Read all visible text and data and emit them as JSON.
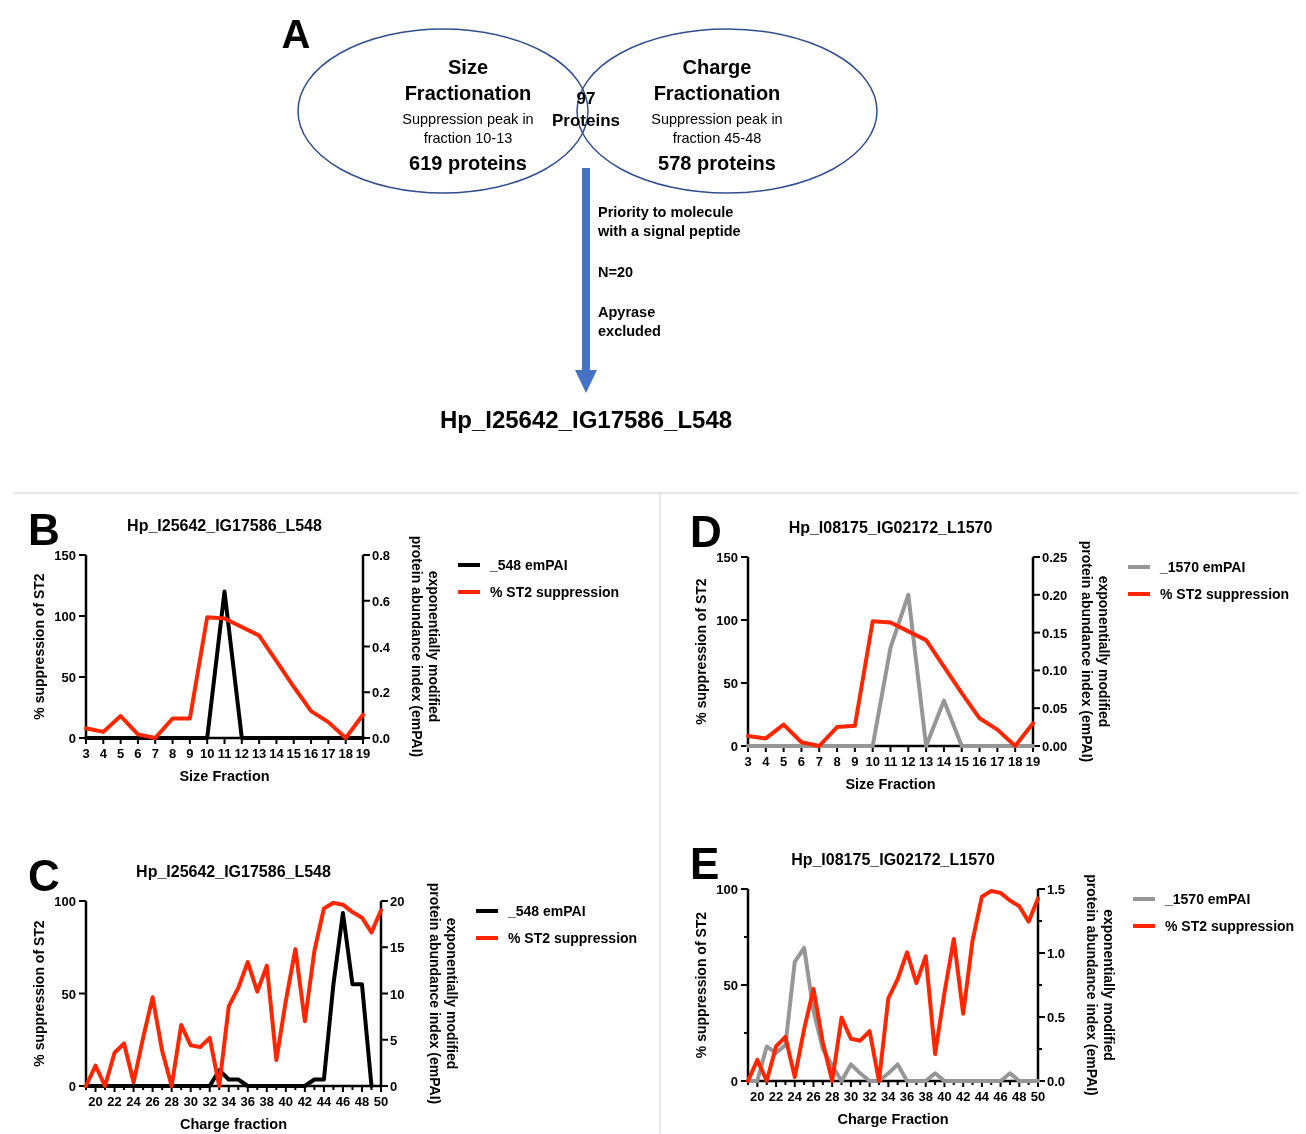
{
  "chart_data": [
    {
      "type": "other",
      "annotations": [
        "A",
        "Size\nFractionation",
        "Suppression peak in\nfraction 10-13",
        "619 proteins",
        "97\nProteins",
        "Charge\nFractionation",
        "Suppression peak in\nfraction 45-48",
        "578 proteins",
        "Priority to molecule\nwith a signal peptide",
        "N=20",
        "Apyrase\nexcluded",
        "Hp_I25642_IG17586_L548"
      ]
    },
    {
      "type": "line",
      "title": "Hp_I25642_IG17586_L548",
      "xlabel": "Size Fraction",
      "ylabel": "% suppression of ST2",
      "y2label": "exponentially modified\nprotein abundance index (emPAI)",
      "annotations": [
        "B"
      ],
      "legend": "right",
      "grid": false,
      "marker": "none",
      "line_style": "solid",
      "x": [
        3,
        4,
        5,
        6,
        7,
        8,
        9,
        10,
        11,
        12,
        13,
        14,
        15,
        16,
        17,
        18,
        19
      ],
      "xlim": [
        3,
        19
      ],
      "xticks": [
        3,
        4,
        5,
        6,
        7,
        8,
        9,
        10,
        11,
        12,
        13,
        14,
        15,
        16,
        17,
        18,
        19
      ],
      "ylim": [
        0,
        150
      ],
      "yticks": [
        0,
        50,
        100,
        150
      ],
      "y2lim": [
        0,
        0.8
      ],
      "y2ticks": [
        {
          "value": 0,
          "label": "0.0"
        },
        {
          "value": 0.2,
          "label": "0.2"
        },
        {
          "value": 0.4,
          "label": "0.4"
        },
        {
          "value": 0.6,
          "label": "0.6"
        },
        {
          "value": 0.8,
          "label": "0.8"
        }
      ],
      "series": [
        {
          "name": "_548 emPAI",
          "color": "#000000",
          "axis": "y2",
          "values": [
            0,
            0,
            0,
            0,
            0,
            0,
            0,
            0,
            0.64,
            0,
            0,
            0,
            0,
            0,
            0,
            0,
            0
          ]
        },
        {
          "name": "% ST2 suppression",
          "color": "#ff2600",
          "values": [
            8,
            5,
            18,
            3,
            0,
            16,
            16,
            99,
            98,
            91,
            84,
            63,
            42,
            22,
            13,
            0,
            19
          ]
        }
      ]
    },
    {
      "type": "line",
      "title": "Hp_I25642_IG17586_L548",
      "xlabel": "Charge fraction",
      "ylabel": "% suppression of ST2",
      "y2label": "exponentially modified\nprotein abundance index (emPAI)",
      "annotations": [
        "C"
      ],
      "legend": "right",
      "grid": false,
      "marker": "none",
      "line_style": "solid",
      "x": [
        19,
        20,
        21,
        22,
        23,
        24,
        25,
        26,
        27,
        28,
        29,
        30,
        31,
        32,
        33,
        34,
        35,
        36,
        37,
        38,
        39,
        40,
        41,
        42,
        43,
        44,
        45,
        46,
        47,
        48,
        49,
        50
      ],
      "xlim": [
        19,
        50
      ],
      "xticks": [
        {
          "value": 19,
          "label": null
        },
        20,
        {
          "value": 21,
          "label": null
        },
        22,
        {
          "value": 23,
          "label": null
        },
        24,
        {
          "value": 25,
          "label": null
        },
        26,
        {
          "value": 27,
          "label": null
        },
        28,
        {
          "value": 29,
          "label": null
        },
        30,
        {
          "value": 31,
          "label": null
        },
        32,
        {
          "value": 33,
          "label": null
        },
        34,
        {
          "value": 35,
          "label": null
        },
        36,
        {
          "value": 37,
          "label": null
        },
        38,
        {
          "value": 39,
          "label": null
        },
        40,
        {
          "value": 41,
          "label": null
        },
        42,
        {
          "value": 43,
          "label": null
        },
        44,
        {
          "value": 45,
          "label": null
        },
        46,
        {
          "value": 47,
          "label": null
        },
        48,
        {
          "value": 49,
          "label": null
        },
        50
      ],
      "ylim": [
        0,
        100
      ],
      "yticks": [
        0,
        50,
        100
      ],
      "y2lim": [
        0,
        20
      ],
      "y2ticks": [
        0,
        5,
        10,
        15,
        20
      ],
      "series": [
        {
          "name": "_548 emPAI",
          "color": "#000000",
          "axis": "y2",
          "values": [
            0,
            0,
            0,
            0,
            0,
            0,
            0,
            0,
            0,
            0,
            0,
            0,
            0,
            0,
            1.7,
            0.7,
            0.7,
            0,
            0,
            0,
            0,
            0,
            0,
            0,
            0.7,
            0.7,
            11,
            18.7,
            11,
            11,
            0,
            null
          ]
        },
        {
          "name": "% ST2 suppression",
          "color": "#ff2600",
          "values": [
            0,
            11,
            0,
            18,
            23,
            2,
            26,
            48,
            19,
            0,
            33,
            22,
            21,
            26,
            0,
            43,
            53,
            67,
            51,
            65,
            14,
            46,
            74,
            35,
            73,
            96,
            99,
            98,
            94,
            91,
            83,
            95
          ]
        }
      ]
    },
    {
      "type": "line",
      "title": "Hp_I08175_IG02172_L1570",
      "xlabel": "Size Fraction",
      "ylabel": "% suppression of ST2",
      "y2label": "exponentially modified\nprotein abundance index (emPAI)",
      "annotations": [
        "D"
      ],
      "legend": "right",
      "grid": false,
      "marker": "none",
      "line_style": "solid",
      "x": [
        3,
        4,
        5,
        6,
        7,
        8,
        9,
        10,
        11,
        12,
        13,
        14,
        15,
        16,
        17,
        18,
        19
      ],
      "xlim": [
        3,
        19
      ],
      "xticks": [
        3,
        4,
        5,
        6,
        7,
        8,
        9,
        10,
        11,
        12,
        13,
        14,
        15,
        16,
        17,
        18,
        19
      ],
      "ylim": [
        0,
        150
      ],
      "yticks": [
        0,
        50,
        100,
        150
      ],
      "y2lim": [
        0,
        0.25
      ],
      "y2ticks": [
        {
          "value": 0,
          "label": "0.00"
        },
        {
          "value": 0.05,
          "label": "0.05"
        },
        {
          "value": 0.1,
          "label": "0.10"
        },
        {
          "value": 0.15,
          "label": "0.15"
        },
        {
          "value": 0.2,
          "label": "0.20"
        },
        {
          "value": 0.25,
          "label": "0.25"
        }
      ],
      "series": [
        {
          "name": "_1570 emPAI",
          "color": "#969696",
          "axis": "y2",
          "values": [
            0,
            0,
            0,
            0,
            0,
            0,
            0,
            0,
            0.13,
            0.2,
            0,
            0.06,
            0,
            0,
            0,
            0,
            0
          ]
        },
        {
          "name": "% ST2 suppression",
          "color": "#ff2600",
          "values": [
            8,
            6,
            17,
            3,
            0,
            15,
            16,
            99,
            98,
            91,
            84,
            63,
            42,
            22,
            13,
            0,
            18
          ]
        }
      ]
    },
    {
      "type": "line",
      "title": "Hp_I08175_IG02172_L1570",
      "xlabel": "Charge Fraction",
      "ylabel": "% suppression of ST2",
      "y2label": "exponentially modified\nprotein abundance index (emPAI)",
      "annotations": [
        "E"
      ],
      "legend": "right",
      "grid": false,
      "marker": "none",
      "line_style": "solid",
      "x": [
        19,
        20,
        21,
        22,
        23,
        24,
        25,
        26,
        27,
        28,
        29,
        30,
        31,
        32,
        33,
        34,
        35,
        36,
        37,
        38,
        39,
        40,
        41,
        42,
        43,
        44,
        45,
        46,
        47,
        48,
        49,
        50
      ],
      "xlim": [
        19,
        50
      ],
      "xticks": [
        {
          "value": 19,
          "label": null
        },
        20,
        {
          "value": 21,
          "label": null
        },
        22,
        {
          "value": 23,
          "label": null
        },
        24,
        {
          "value": 25,
          "label": null
        },
        26,
        {
          "value": 27,
          "label": null
        },
        28,
        {
          "value": 29,
          "label": null
        },
        30,
        {
          "value": 31,
          "label": null
        },
        32,
        {
          "value": 33,
          "label": null
        },
        34,
        {
          "value": 35,
          "label": null
        },
        36,
        {
          "value": 37,
          "label": null
        },
        38,
        {
          "value": 39,
          "label": null
        },
        40,
        {
          "value": 41,
          "label": null
        },
        42,
        {
          "value": 43,
          "label": null
        },
        44,
        {
          "value": 45,
          "label": null
        },
        46,
        {
          "value": 47,
          "label": null
        },
        48,
        {
          "value": 49,
          "label": null
        },
        50
      ],
      "ylim": [
        0,
        100
      ],
      "yticks": [
        0,
        {
          "value": 25,
          "label": null
        },
        50,
        {
          "value": 75,
          "label": null
        },
        100
      ],
      "y2lim": [
        0,
        1.5
      ],
      "y2ticks": [
        {
          "value": 0,
          "label": "0.0"
        },
        {
          "value": 0.25,
          "label": null
        },
        {
          "value": 0.5,
          "label": "0.5"
        },
        {
          "value": 0.75,
          "label": null
        },
        {
          "value": 1,
          "label": "1.0"
        },
        {
          "value": 1.25,
          "label": null
        },
        {
          "value": 1.5,
          "label": "1.5"
        }
      ],
      "series": [
        {
          "name": "_1570 emPAI",
          "color": "#969696",
          "axis": "y2",
          "values": [
            0,
            0,
            0.27,
            0.22,
            0.28,
            0.93,
            1.04,
            0.55,
            0.25,
            0.12,
            0,
            0.13,
            0.06,
            0,
            0,
            0.06,
            0.13,
            0,
            0,
            0,
            0.06,
            0,
            0,
            0,
            0,
            0,
            0,
            0,
            0.06,
            0,
            0,
            0
          ]
        },
        {
          "name": "% ST2 suppression",
          "color": "#ff2600",
          "values": [
            0,
            11,
            0,
            18,
            23,
            2,
            27,
            48,
            20,
            0,
            33,
            22,
            21,
            26,
            0,
            43,
            53,
            67,
            51,
            65,
            14,
            46,
            74,
            35,
            73,
            96,
            99,
            98,
            94,
            91,
            83,
            95
          ]
        }
      ]
    }
  ]
}
